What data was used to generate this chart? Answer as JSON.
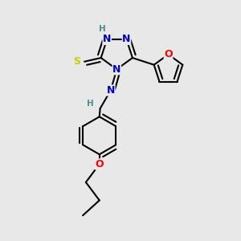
{
  "bg_color": "#e8e8e8",
  "atom_colors": {
    "C": "#000000",
    "N": "#0000cc",
    "O": "#ff0000",
    "S": "#cccc00",
    "H": "#4a9090"
  },
  "bond_color": "#000000",
  "bond_width": 1.5,
  "font_size_atom": 9,
  "font_size_H": 7.5,
  "xlim": [
    0,
    3.2
  ],
  "ylim": [
    0,
    3.2
  ]
}
